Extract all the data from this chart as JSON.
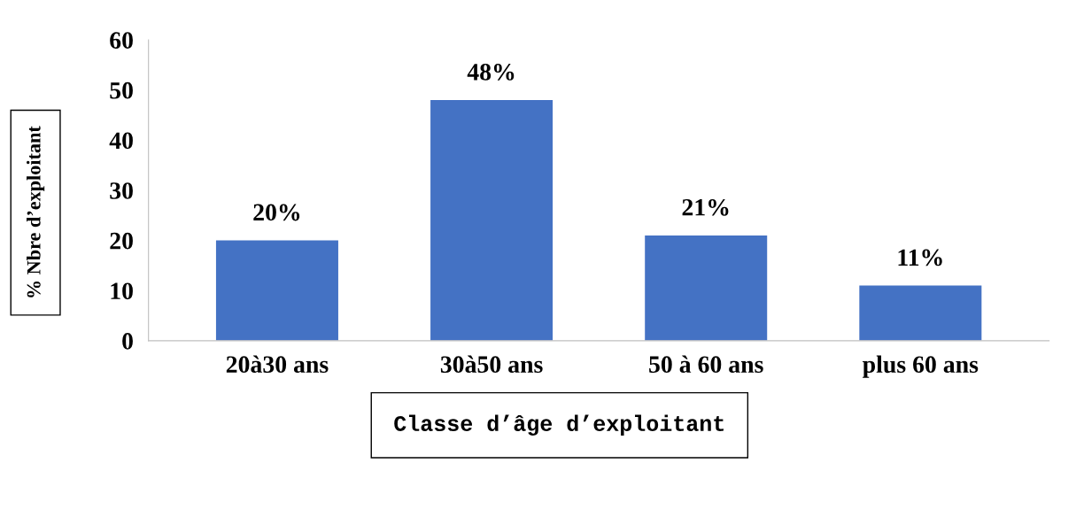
{
  "chart_data": {
    "type": "bar",
    "xlabel": "Classe d’âge d’exploitant",
    "ylabel": "% Nbre d’exploitant",
    "categories": [
      "20à30 ans",
      "30à50 ans",
      "50 à 60 ans",
      "plus 60 ans"
    ],
    "values": [
      20,
      48,
      21,
      11
    ],
    "value_labels": [
      "20%",
      "48%",
      "21%",
      "11%"
    ],
    "color": "#4472c4",
    "ylim": [
      0,
      60
    ],
    "yticks": [
      0,
      10,
      20,
      30,
      40,
      50,
      60
    ],
    "grid": false
  }
}
